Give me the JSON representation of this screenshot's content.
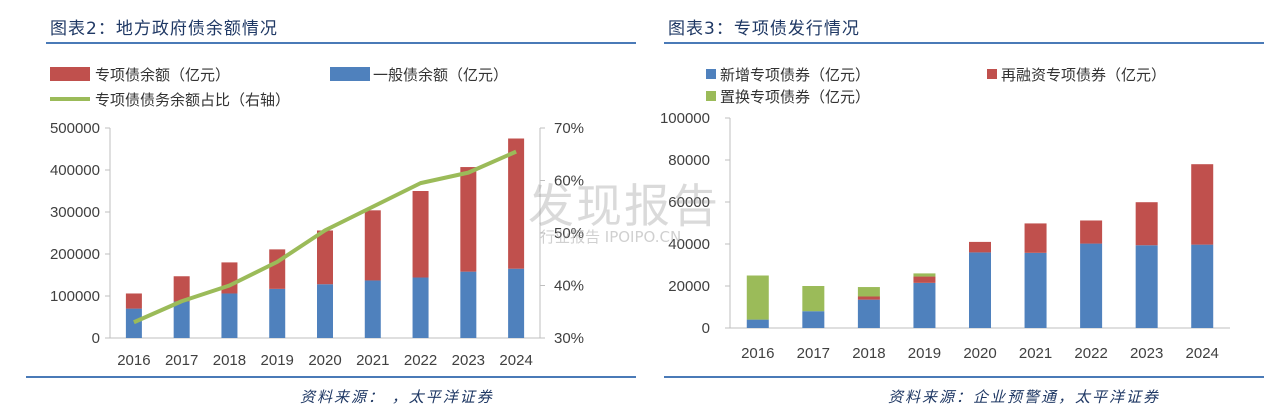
{
  "left": {
    "title": "图表2：地方政府债余额情况",
    "source": "资料来源：      ，太平洋证券"
  },
  "right": {
    "title": "图表3：专项债发行情况",
    "source": "资料来源：企业预警通，太平洋证券"
  },
  "watermark": {
    "main": "发现报告",
    "sub": "行业报告 IPOIPO.CN"
  },
  "colors": {
    "red": "#c0504d",
    "blue": "#4f81bd",
    "green": "#9bbb59",
    "axis": "#bfbfbf"
  },
  "chart_data": [
    {
      "type": "bar",
      "stacked": true,
      "categories": [
        "2016",
        "2017",
        "2018",
        "2019",
        "2020",
        "2021",
        "2022",
        "2023",
        "2024"
      ],
      "series": [
        {
          "name": "一般债余额（亿元）",
          "color": "#4f81bd",
          "values": [
            70000,
            87000,
            106000,
            117000,
            128000,
            137000,
            144000,
            158000,
            165000
          ]
        },
        {
          "name": "专项债余额（亿元）",
          "color": "#c0504d",
          "values": [
            36000,
            60000,
            74000,
            94000,
            128000,
            167000,
            206000,
            249000,
            310000
          ]
        }
      ],
      "line": {
        "name": "专项债债务余额占比（右轴）",
        "color": "#9bbb59",
        "values": [
          33,
          37,
          40,
          44.5,
          50.5,
          55,
          59.5,
          61.5,
          65.5
        ]
      },
      "y_ticks": [
        "0",
        "100000",
        "200000",
        "300000",
        "400000",
        "500000"
      ],
      "ylim": [
        0,
        500000
      ],
      "y2_ticks": [
        "30%",
        "40%",
        "50%",
        "60%",
        "70%"
      ],
      "y2lim": [
        30,
        70
      ]
    },
    {
      "type": "bar",
      "stacked": true,
      "categories": [
        "2016",
        "2017",
        "2018",
        "2019",
        "2020",
        "2021",
        "2022",
        "2023",
        "2024"
      ],
      "series": [
        {
          "name": "新增专项债券（亿元）",
          "color": "#4f81bd",
          "values": [
            4000,
            8000,
            13500,
            21500,
            36000,
            35800,
            40200,
            39400,
            39700
          ]
        },
        {
          "name": "再融资专项债券（亿元）",
          "color": "#c0504d",
          "values": [
            0,
            0,
            1500,
            3000,
            5000,
            14000,
            11000,
            20500,
            38300
          ]
        },
        {
          "name": "置换专项债券（亿元）",
          "color": "#9bbb59",
          "values": [
            21000,
            12000,
            4500,
            1500,
            0,
            0,
            0,
            0,
            0
          ]
        }
      ],
      "y_ticks": [
        "0",
        "20000",
        "40000",
        "60000",
        "80000",
        "100000"
      ],
      "ylim": [
        0,
        100000
      ]
    }
  ]
}
